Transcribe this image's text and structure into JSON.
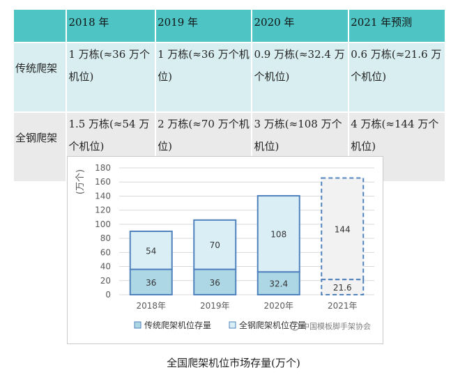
{
  "table": {
    "header": [
      "",
      "2018 年",
      "2019 年",
      "2020 年",
      "2021 年预测"
    ],
    "rows": [
      {
        "label": "传统爬架",
        "cells": [
          "1 万栋(≈36 万个机位)",
          "1 万栋(≈36 万个机位)",
          "0.9 万栋(≈32.4 万个机位)",
          "0.6 万栋(≈21.6 万个机位)"
        ]
      },
      {
        "label": "全钢爬架",
        "cells": [
          "1.5 万栋(≈54 万个机位)",
          "2 万栋(≈70 万个机位)",
          "3 万栋(≈108 万个机位)",
          "4 万栋(≈144 万个机位)"
        ]
      }
    ]
  },
  "chart_data": {
    "type": "bar",
    "stacked": true,
    "categories": [
      "2018年",
      "2019年",
      "2020年",
      "2021年"
    ],
    "series": [
      {
        "name": "传统爬架机位存量",
        "values": [
          36,
          36,
          32.4,
          21.6
        ]
      },
      {
        "name": "全钢爬架机位存量",
        "values": [
          54,
          70,
          108,
          144
        ]
      }
    ],
    "ylabel": "(万个)",
    "ylim": [
      0,
      180
    ],
    "yticks": [
      0,
      20,
      40,
      60,
      80,
      100,
      120,
      140,
      160,
      180
    ],
    "grid": true,
    "legend": "bottom",
    "forecast_category": "2021年",
    "colors": {
      "series0": "#aed7e6",
      "series1": "#daeef6",
      "border": "#4f81bd",
      "forecast_fill": "#f2f2f2"
    }
  },
  "watermark": "中国模板脚手架协会",
  "caption": "全国爬架机位市场存量(万个)"
}
